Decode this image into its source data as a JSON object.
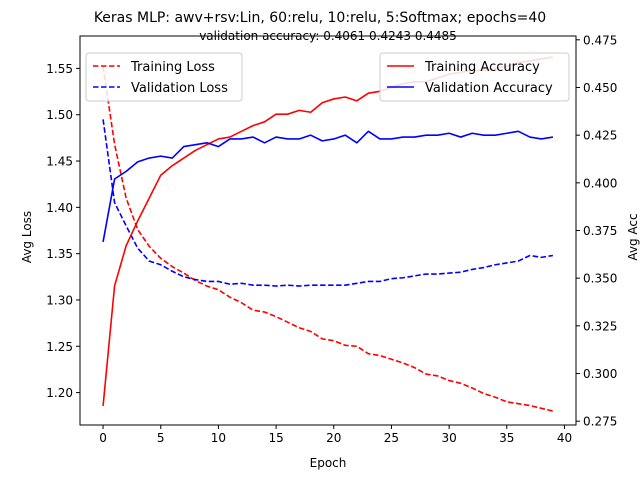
{
  "chart_data": {
    "type": "line",
    "title": "Keras MLP: awv+rsv:Lin, 60:relu, 10:relu, 5:Softmax; epochs=40",
    "subtitle": "validation accuracy:  0.4061  0.4243  0.4485",
    "xlabel": "Epoch",
    "ylabel_left": "Avg Loss",
    "ylabel_right": "Avg Acc",
    "xlim": [
      -2,
      41
    ],
    "ylim_left": [
      1.165,
      1.585
    ],
    "ylim_right": [
      0.273,
      0.477
    ],
    "xticks": [
      0,
      5,
      10,
      15,
      20,
      25,
      30,
      35,
      40
    ],
    "yticks_left": [
      1.2,
      1.25,
      1.3,
      1.35,
      1.4,
      1.45,
      1.5,
      1.55
    ],
    "yticks_left_labels": [
      "1.20",
      "1.25",
      "1.30",
      "1.35",
      "1.40",
      "1.45",
      "1.50",
      "1.55"
    ],
    "yticks_right": [
      0.275,
      0.3,
      0.325,
      0.35,
      0.375,
      0.4,
      0.425,
      0.45,
      0.475
    ],
    "yticks_right_labels": [
      "0.275",
      "0.300",
      "0.325",
      "0.350",
      "0.375",
      "0.400",
      "0.425",
      "0.450",
      "0.475"
    ],
    "x": [
      0,
      1,
      2,
      3,
      4,
      5,
      6,
      7,
      8,
      9,
      10,
      11,
      12,
      13,
      14,
      15,
      16,
      17,
      18,
      19,
      20,
      21,
      22,
      23,
      24,
      25,
      26,
      27,
      28,
      29,
      30,
      31,
      32,
      33,
      34,
      35,
      36,
      37,
      38,
      39
    ],
    "series": [
      {
        "name": "Training Loss",
        "axis": "left",
        "color": "#ff0000",
        "style": "dashed",
        "values": [
          1.552,
          1.468,
          1.41,
          1.376,
          1.358,
          1.345,
          1.336,
          1.329,
          1.321,
          1.315,
          1.311,
          1.303,
          1.297,
          1.289,
          1.287,
          1.282,
          1.276,
          1.27,
          1.266,
          1.258,
          1.256,
          1.251,
          1.25,
          1.242,
          1.24,
          1.236,
          1.232,
          1.227,
          1.22,
          1.218,
          1.213,
          1.21,
          1.205,
          1.199,
          1.195,
          1.19,
          1.188,
          1.186,
          1.183,
          1.18
        ]
      },
      {
        "name": "Validation Loss",
        "axis": "left",
        "color": "#0000ff",
        "style": "dashed",
        "values": [
          1.495,
          1.405,
          1.38,
          1.356,
          1.342,
          1.338,
          1.331,
          1.325,
          1.322,
          1.32,
          1.32,
          1.317,
          1.318,
          1.316,
          1.316,
          1.315,
          1.316,
          1.315,
          1.316,
          1.316,
          1.316,
          1.316,
          1.318,
          1.32,
          1.32,
          1.323,
          1.324,
          1.326,
          1.328,
          1.328,
          1.329,
          1.33,
          1.333,
          1.335,
          1.338,
          1.34,
          1.342,
          1.348,
          1.346,
          1.348
        ]
      },
      {
        "name": "Training Accuracy",
        "axis": "right",
        "color": "#ff0000",
        "style": "solid",
        "values": [
          0.283,
          0.346,
          0.367,
          0.38,
          0.392,
          0.404,
          0.409,
          0.413,
          0.417,
          0.42,
          0.423,
          0.424,
          0.427,
          0.43,
          0.432,
          0.436,
          0.436,
          0.438,
          0.437,
          0.442,
          0.444,
          0.445,
          0.443,
          0.447,
          0.448,
          0.45,
          0.452,
          0.453,
          0.453,
          0.455,
          0.457,
          0.458,
          0.459,
          0.459,
          0.46,
          0.461,
          0.463,
          0.464,
          0.465,
          0.466
        ]
      },
      {
        "name": "Validation Accuracy",
        "axis": "right",
        "color": "#0000ff",
        "style": "solid",
        "values": [
          0.369,
          0.402,
          0.406,
          0.411,
          0.413,
          0.414,
          0.413,
          0.419,
          0.42,
          0.421,
          0.419,
          0.423,
          0.423,
          0.424,
          0.421,
          0.424,
          0.423,
          0.423,
          0.425,
          0.422,
          0.423,
          0.425,
          0.421,
          0.427,
          0.423,
          0.423,
          0.424,
          0.424,
          0.425,
          0.425,
          0.426,
          0.424,
          0.426,
          0.425,
          0.425,
          0.426,
          0.427,
          0.424,
          0.423,
          0.424
        ]
      }
    ],
    "legend_left": {
      "placement": "upper-left",
      "entries": [
        "Training Loss",
        "Validation Loss"
      ]
    },
    "legend_right": {
      "placement": "upper-right",
      "entries": [
        "Training Accuracy",
        "Validation Accuracy"
      ]
    },
    "grid": false
  }
}
